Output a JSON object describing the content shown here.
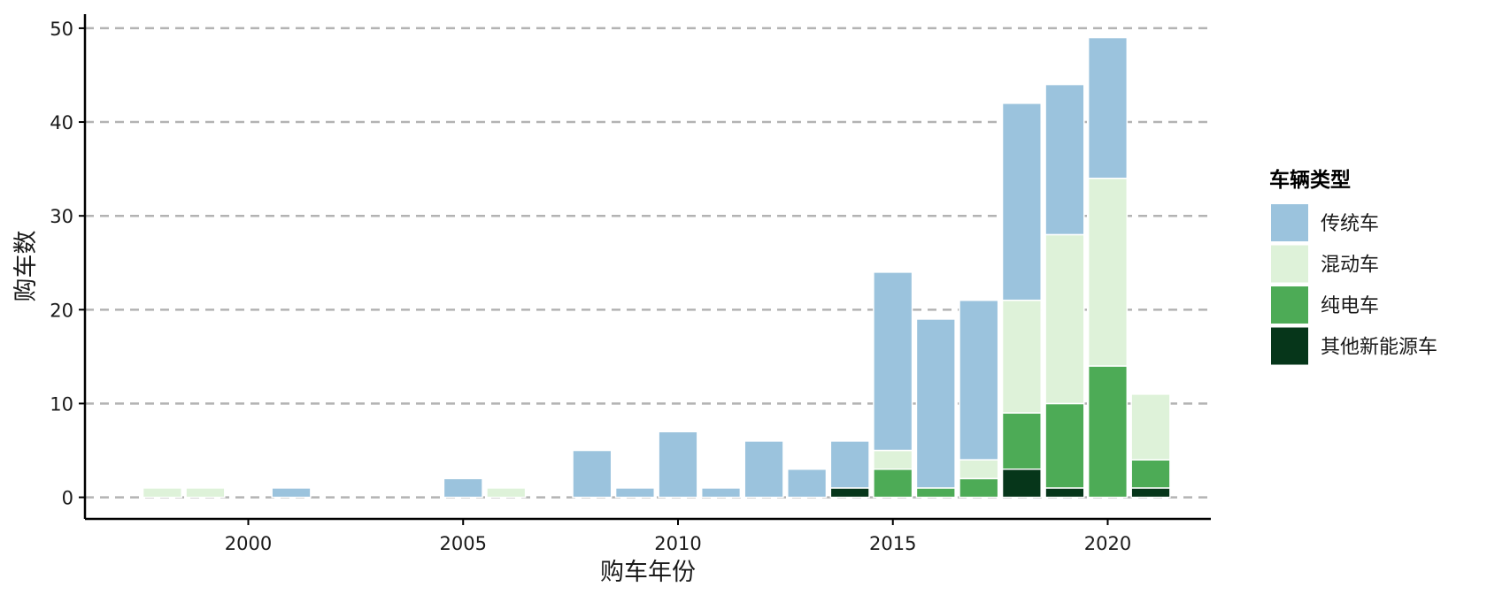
{
  "chart_data": {
    "type": "bar",
    "stacked": true,
    "xlabel": "购车年份",
    "ylabel": "购车数",
    "x": [
      1998,
      1999,
      2001,
      2005,
      2006,
      2008,
      2009,
      2010,
      2011,
      2012,
      2013,
      2014,
      2015,
      2016,
      2017,
      2018,
      2019,
      2020,
      2021
    ],
    "series": [
      {
        "name": "其他新能源车",
        "color": "#06361a",
        "values": [
          0,
          0,
          0,
          0,
          0,
          0,
          0,
          0,
          0,
          0,
          0,
          1,
          0,
          0,
          0,
          3,
          1,
          0,
          1
        ]
      },
      {
        "name": "纯电车",
        "color": "#4dab56",
        "values": [
          0,
          0,
          0,
          0,
          0,
          0,
          0,
          0,
          0,
          0,
          0,
          0,
          3,
          1,
          2,
          6,
          9,
          14,
          3
        ]
      },
      {
        "name": "混动车",
        "color": "#def2d9",
        "values": [
          1,
          1,
          0,
          0,
          1,
          0,
          0,
          0,
          0,
          0,
          0,
          0,
          2,
          0,
          2,
          12,
          18,
          20,
          7
        ]
      },
      {
        "name": "传统车",
        "color": "#9bc3dd",
        "values": [
          0,
          0,
          1,
          2,
          0,
          5,
          1,
          7,
          1,
          6,
          3,
          5,
          19,
          18,
          17,
          21,
          16,
          15,
          0
        ]
      }
    ],
    "xlim": [
      1996.2,
      2022.4
    ],
    "ylim": [
      -2.3,
      51.5
    ],
    "xticks": [
      2000,
      2005,
      2010,
      2015,
      2020
    ],
    "yticks": [
      0,
      10,
      20,
      30,
      40,
      50
    ],
    "grid": "horizontal dashed",
    "legend": {
      "title": "车辆类型",
      "position": "right",
      "entries": [
        "传统车",
        "混动车",
        "纯电车",
        "其他新能源车"
      ]
    }
  }
}
